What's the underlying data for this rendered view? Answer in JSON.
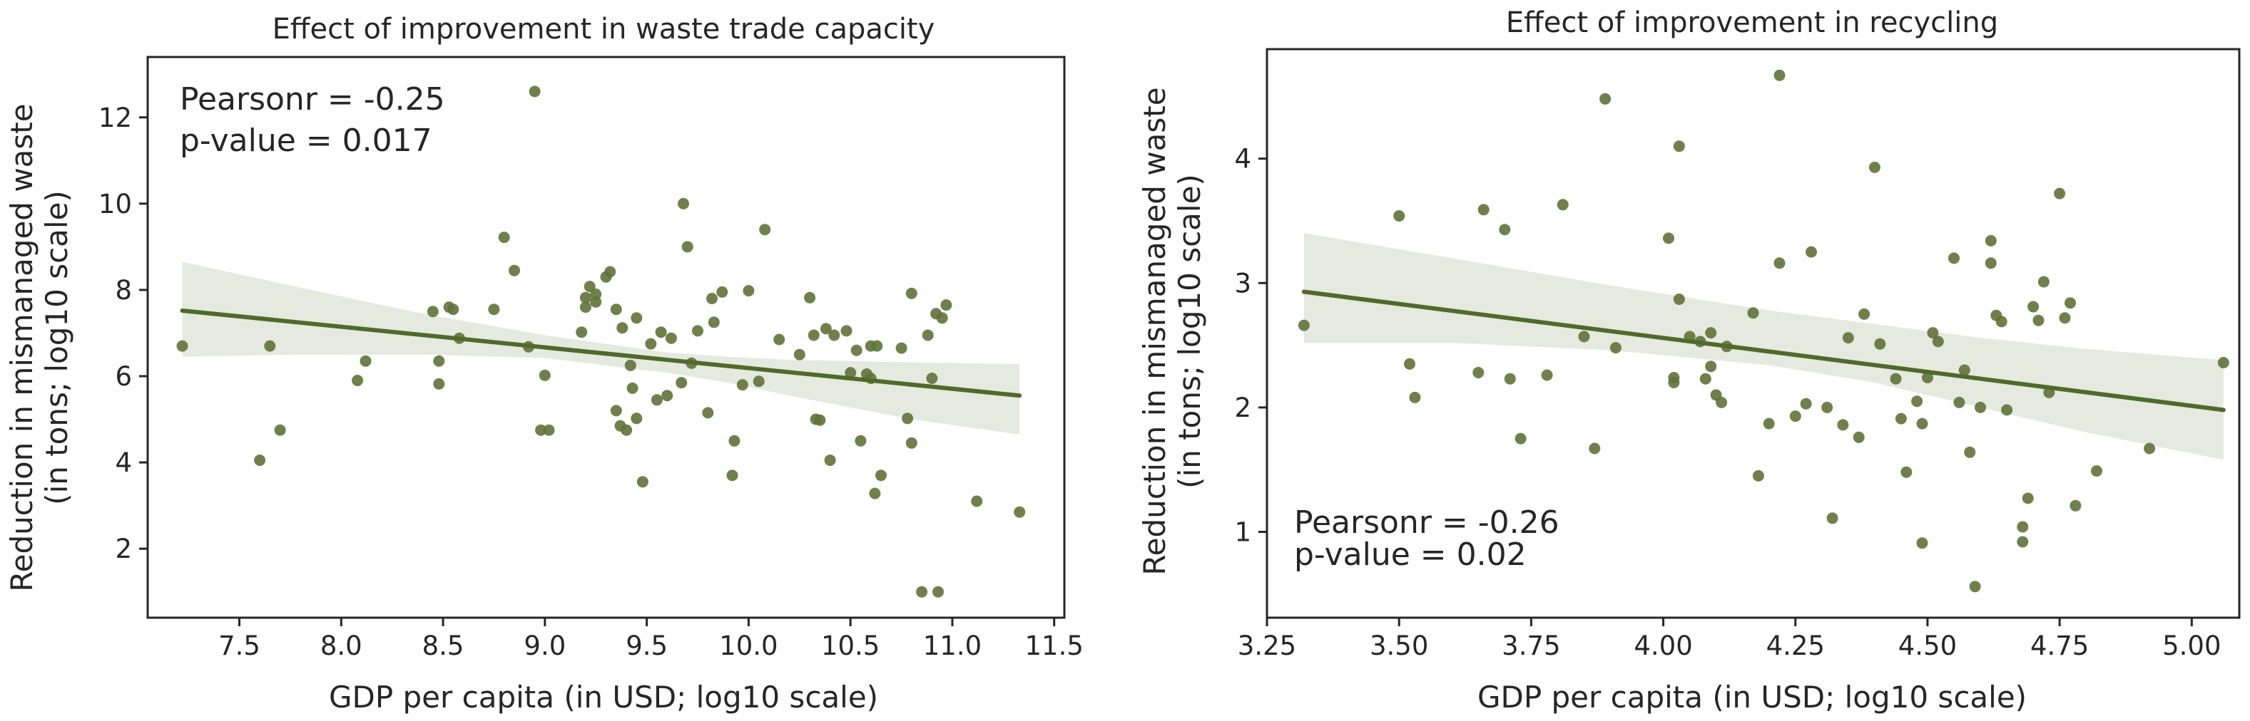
{
  "figure": {
    "colors": {
      "points": "#5f723a",
      "line": "#4f6a2b",
      "band": "#e3e7dc",
      "axes": "#262626",
      "background": "#ffffff"
    }
  },
  "chart_data": [
    {
      "type": "scatter",
      "title": "Effect of improvement in waste trade capacity",
      "xlabel": "GDP per capita (in USD; log10 scale)",
      "ylabel_lines": [
        "Reduction in mismanaged waste",
        "(in tons; log10 scale)"
      ],
      "xlim": [
        7.05,
        11.55
      ],
      "ylim": [
        0.4,
        13.4
      ],
      "xticks": [
        7.5,
        8.0,
        8.5,
        9.0,
        9.5,
        10.0,
        10.5,
        11.0,
        11.5
      ],
      "xtick_labels": [
        "7.5",
        "8.0",
        "8.5",
        "9.0",
        "9.5",
        "10.0",
        "10.5",
        "11.0",
        "11.5"
      ],
      "yticks": [
        2,
        4,
        6,
        8,
        10,
        12
      ],
      "ytick_labels": [
        "2",
        "4",
        "6",
        "8",
        "10",
        "12"
      ],
      "annotation": [
        "Pearsonr = -0.25",
        "p-value = 0.017"
      ],
      "annotation_position": "top-left",
      "regression": {
        "x": [
          7.22,
          11.33
        ],
        "y": [
          7.52,
          5.55
        ]
      },
      "confidence_band": {
        "x": [
          7.22,
          7.8,
          8.4,
          9.0,
          9.6,
          9.9,
          10.2,
          10.8,
          11.33
        ],
        "upper": [
          8.65,
          8.05,
          7.45,
          6.95,
          6.55,
          6.45,
          6.38,
          6.32,
          6.28
        ],
        "lower": [
          6.45,
          6.5,
          6.5,
          6.42,
          6.08,
          5.85,
          5.55,
          5.0,
          4.65
        ]
      },
      "points": {
        "x": [
          7.22,
          7.6,
          7.65,
          7.7,
          8.08,
          8.12,
          8.45,
          8.48,
          8.48,
          8.53,
          8.55,
          8.58,
          8.75,
          8.8,
          8.85,
          8.92,
          8.95,
          8.98,
          9.0,
          9.02,
          9.18,
          9.2,
          9.2,
          9.22,
          9.25,
          9.25,
          9.3,
          9.32,
          9.35,
          9.35,
          9.37,
          9.38,
          9.4,
          9.42,
          9.43,
          9.45,
          9.45,
          9.48,
          9.52,
          9.55,
          9.57,
          9.6,
          9.62,
          9.67,
          9.68,
          9.7,
          9.72,
          9.75,
          9.8,
          9.82,
          9.83,
          9.87,
          9.92,
          9.93,
          9.97,
          10.0,
          10.05,
          10.08,
          10.15,
          10.25,
          10.3,
          10.32,
          10.33,
          10.35,
          10.38,
          10.4,
          10.42,
          10.48,
          10.5,
          10.53,
          10.55,
          10.58,
          10.6,
          10.6,
          10.62,
          10.63,
          10.65,
          10.75,
          10.78,
          10.8,
          10.8,
          10.85,
          10.88,
          10.9,
          10.92,
          10.93,
          10.95,
          10.97,
          11.12,
          11.33
        ],
        "y": [
          6.7,
          4.05,
          6.7,
          4.75,
          5.9,
          6.35,
          7.5,
          6.35,
          5.82,
          7.6,
          7.55,
          6.88,
          7.55,
          9.22,
          8.45,
          6.68,
          12.6,
          4.75,
          6.02,
          4.75,
          7.02,
          7.6,
          7.82,
          8.08,
          7.9,
          7.72,
          8.3,
          8.42,
          7.55,
          5.2,
          4.85,
          7.12,
          4.75,
          6.25,
          5.72,
          7.35,
          5.02,
          3.55,
          6.75,
          5.45,
          7.02,
          5.55,
          6.88,
          5.85,
          10.0,
          9.0,
          6.3,
          7.05,
          5.15,
          7.8,
          7.25,
          7.95,
          3.7,
          4.5,
          5.8,
          7.98,
          5.88,
          9.4,
          6.85,
          6.5,
          7.82,
          6.95,
          5.0,
          4.98,
          7.1,
          4.05,
          6.95,
          7.05,
          6.08,
          6.6,
          4.5,
          6.05,
          6.7,
          5.95,
          3.28,
          6.7,
          3.7,
          6.65,
          5.02,
          4.45,
          7.92,
          1.0,
          6.95,
          5.95,
          7.45,
          1.0,
          7.35,
          7.65,
          3.1,
          2.85
        ]
      }
    },
    {
      "type": "scatter",
      "title": "Effect of improvement in recycling",
      "xlabel": "GDP per capita (in USD; log10 scale)",
      "ylabel_lines": [
        "Reduction in mismanaged waste",
        "(in tons; log10 scale)"
      ],
      "xlim": [
        3.25,
        5.09
      ],
      "ylim": [
        0.31,
        4.88
      ],
      "xticks": [
        3.25,
        3.5,
        3.75,
        4.0,
        4.25,
        4.5,
        4.75,
        5.0
      ],
      "xtick_labels": [
        "3.25",
        "3.50",
        "3.75",
        "4.00",
        "4.25",
        "4.50",
        "4.75",
        "5.00"
      ],
      "yticks": [
        1,
        2,
        3,
        4
      ],
      "ytick_labels": [
        "1",
        "2",
        "3",
        "4"
      ],
      "annotation": [
        "Pearsonr = -0.26",
        "p-value = 0.02"
      ],
      "annotation_position": "bottom-left",
      "regression": {
        "x": [
          3.32,
          5.06
        ],
        "y": [
          2.93,
          1.98
        ]
      },
      "confidence_band": {
        "x": [
          3.32,
          3.6,
          3.9,
          4.2,
          4.4,
          4.6,
          4.8,
          5.06
        ],
        "upper": [
          3.4,
          3.2,
          2.98,
          2.78,
          2.67,
          2.56,
          2.47,
          2.38
        ],
        "lower": [
          2.52,
          2.52,
          2.46,
          2.34,
          2.2,
          2.0,
          1.8,
          1.58
        ]
      },
      "points": {
        "x": [
          3.32,
          3.5,
          3.52,
          3.53,
          3.65,
          3.66,
          3.7,
          3.71,
          3.73,
          3.78,
          3.81,
          3.85,
          3.87,
          3.89,
          3.91,
          4.01,
          4.02,
          4.02,
          4.03,
          4.03,
          4.05,
          4.07,
          4.08,
          4.09,
          4.09,
          4.1,
          4.11,
          4.12,
          4.17,
          4.18,
          4.2,
          4.22,
          4.22,
          4.25,
          4.27,
          4.28,
          4.31,
          4.32,
          4.34,
          4.35,
          4.37,
          4.38,
          4.4,
          4.41,
          4.44,
          4.45,
          4.46,
          4.48,
          4.49,
          4.49,
          4.5,
          4.51,
          4.52,
          4.55,
          4.56,
          4.57,
          4.58,
          4.59,
          4.6,
          4.62,
          4.62,
          4.63,
          4.64,
          4.65,
          4.68,
          4.68,
          4.69,
          4.7,
          4.71,
          4.72,
          4.73,
          4.75,
          4.76,
          4.77,
          4.78,
          4.82,
          4.92,
          5.06
        ],
        "y": [
          2.66,
          3.54,
          2.35,
          2.08,
          2.28,
          3.59,
          3.43,
          2.23,
          1.75,
          2.26,
          3.63,
          2.57,
          1.67,
          4.48,
          2.48,
          3.36,
          2.24,
          2.2,
          4.1,
          2.87,
          2.57,
          2.53,
          2.23,
          2.33,
          2.6,
          2.1,
          2.04,
          2.49,
          2.76,
          1.45,
          1.87,
          3.16,
          4.67,
          1.93,
          2.03,
          3.25,
          2.0,
          1.11,
          1.86,
          2.56,
          1.76,
          2.75,
          3.93,
          2.51,
          2.23,
          1.91,
          1.48,
          2.05,
          1.87,
          0.91,
          2.24,
          2.6,
          2.53,
          3.2,
          2.04,
          2.3,
          1.64,
          0.56,
          2.0,
          3.16,
          3.34,
          2.74,
          2.69,
          1.98,
          1.04,
          0.92,
          1.27,
          2.81,
          2.7,
          3.01,
          2.12,
          3.72,
          2.72,
          2.84,
          1.21,
          1.49,
          1.67,
          2.36
        ]
      }
    }
  ]
}
